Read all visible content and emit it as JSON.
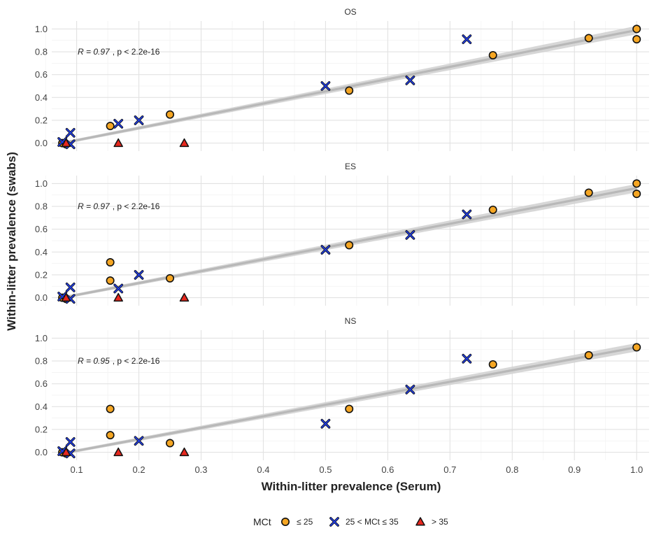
{
  "chart_data": {
    "type": "scatter",
    "xlabel": "Within-litter prevalence (Serum)",
    "ylabel": "Within-litter prevalence (swabs)",
    "xlim": [
      0.06,
      1.02
    ],
    "ylim": [
      -0.07,
      1.07
    ],
    "x_ticks": [
      0.1,
      0.2,
      0.3,
      0.4,
      0.5,
      0.6,
      0.7,
      0.8,
      0.9,
      1.0
    ],
    "x_tick_labels": [
      "0.1",
      "0.2",
      "0.3",
      "0.4",
      "0.5",
      "0.6",
      "0.7",
      "0.8",
      "0.9",
      "1.0"
    ],
    "y_ticks": [
      0.0,
      0.2,
      0.4,
      0.6,
      0.8,
      1.0
    ],
    "y_tick_labels": [
      "0.0",
      "0.2",
      "0.4",
      "0.6",
      "0.8",
      "1.0"
    ],
    "grid": true,
    "legend": {
      "title": "MCt",
      "position": "bottom",
      "entries": [
        {
          "label": "≤ 25",
          "shape": "circle",
          "color": "#F5A623"
        },
        {
          "label": "25 < MCt ≤ 35",
          "shape": "x",
          "color": "#1F3BE0"
        },
        {
          "label": "> 35",
          "shape": "triangle",
          "color": "#E8281E"
        }
      ]
    },
    "panels": [
      {
        "title": "OS",
        "stat_r": "R = 0.97",
        "stat_p": ", p < 2.2e-16",
        "fit": {
          "x": [
            0.077,
            1.0
          ],
          "y": [
            0.0,
            0.99
          ]
        },
        "series": [
          {
            "name": "≤ 25",
            "points": [
              [
                0.077,
                0.0
              ],
              [
                0.083,
                -0.01
              ],
              [
                0.154,
                0.15
              ],
              [
                0.25,
                0.25
              ],
              [
                0.538,
                0.46
              ],
              [
                0.769,
                0.77
              ],
              [
                0.923,
                0.92
              ],
              [
                1.0,
                1.0
              ],
              [
                1.0,
                0.91
              ]
            ]
          },
          {
            "name": "25 < MCt ≤ 35",
            "points": [
              [
                0.077,
                0.01
              ],
              [
                0.09,
                0.09
              ],
              [
                0.09,
                -0.01
              ],
              [
                0.167,
                0.17
              ],
              [
                0.2,
                0.2
              ],
              [
                0.5,
                0.5
              ],
              [
                0.636,
                0.55
              ],
              [
                0.727,
                0.91
              ]
            ]
          },
          {
            "name": "> 35",
            "points": [
              [
                0.083,
                0.0
              ],
              [
                0.167,
                0.0
              ],
              [
                0.273,
                0.0
              ]
            ]
          }
        ]
      },
      {
        "title": "ES",
        "stat_r": "R = 0.97",
        "stat_p": ", p < 2.2e-16",
        "fit": {
          "x": [
            0.077,
            1.0
          ],
          "y": [
            0.0,
            0.96
          ]
        },
        "series": [
          {
            "name": "≤ 25",
            "points": [
              [
                0.077,
                0.0
              ],
              [
                0.083,
                -0.01
              ],
              [
                0.154,
                0.31
              ],
              [
                0.154,
                0.15
              ],
              [
                0.25,
                0.17
              ],
              [
                0.538,
                0.46
              ],
              [
                0.769,
                0.77
              ],
              [
                0.923,
                0.92
              ],
              [
                1.0,
                1.0
              ],
              [
                1.0,
                0.91
              ]
            ]
          },
          {
            "name": "25 < MCt ≤ 35",
            "points": [
              [
                0.077,
                0.01
              ],
              [
                0.09,
                0.09
              ],
              [
                0.09,
                -0.01
              ],
              [
                0.167,
                0.08
              ],
              [
                0.2,
                0.2
              ],
              [
                0.5,
                0.42
              ],
              [
                0.636,
                0.55
              ],
              [
                0.727,
                0.73
              ]
            ]
          },
          {
            "name": "> 35",
            "points": [
              [
                0.083,
                0.0
              ],
              [
                0.167,
                0.0
              ],
              [
                0.273,
                0.0
              ]
            ]
          }
        ]
      },
      {
        "title": "NS",
        "stat_r": "R = 0.95",
        "stat_p": ", p < 2.2e-16",
        "fit": {
          "x": [
            0.077,
            1.0
          ],
          "y": [
            -0.01,
            0.92
          ]
        },
        "series": [
          {
            "name": "≤ 25",
            "points": [
              [
                0.077,
                0.0
              ],
              [
                0.083,
                -0.01
              ],
              [
                0.154,
                0.38
              ],
              [
                0.154,
                0.15
              ],
              [
                0.25,
                0.08
              ],
              [
                0.538,
                0.38
              ],
              [
                0.769,
                0.77
              ],
              [
                0.923,
                0.85
              ],
              [
                1.0,
                0.92
              ]
            ]
          },
          {
            "name": "25 < MCt ≤ 35",
            "points": [
              [
                0.077,
                0.01
              ],
              [
                0.09,
                0.09
              ],
              [
                0.09,
                -0.01
              ],
              [
                0.2,
                0.1
              ],
              [
                0.5,
                0.25
              ],
              [
                0.636,
                0.55
              ],
              [
                0.727,
                0.82
              ]
            ]
          },
          {
            "name": "> 35",
            "points": [
              [
                0.083,
                0.0
              ],
              [
                0.167,
                0.0
              ],
              [
                0.273,
                0.0
              ]
            ]
          }
        ]
      }
    ]
  }
}
